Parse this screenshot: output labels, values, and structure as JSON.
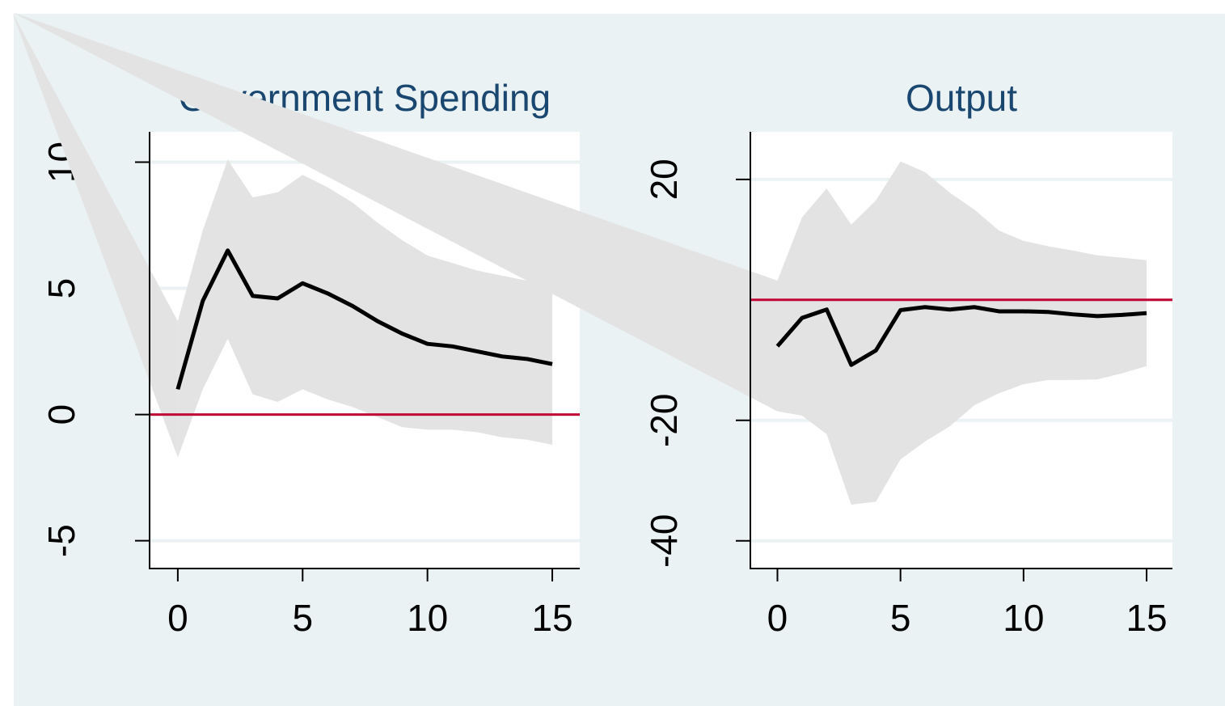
{
  "chart_data": [
    {
      "type": "line",
      "title": "Government Spending",
      "x": [
        0,
        1,
        2,
        3,
        4,
        5,
        6,
        7,
        8,
        9,
        10,
        11,
        12,
        13,
        14,
        15
      ],
      "series": [
        {
          "color": "#000000",
          "values": [
            1.0,
            4.5,
            6.5,
            4.7,
            4.6,
            5.2,
            4.8,
            4.3,
            3.7,
            3.2,
            2.8,
            2.7,
            2.5,
            2.3,
            2.2,
            2.0
          ]
        }
      ],
      "band": {
        "color": "#e3e3e3",
        "upper": [
          3.7,
          7.3,
          10.1,
          8.6,
          8.8,
          9.5,
          9.0,
          8.4,
          7.6,
          6.9,
          6.3,
          6.0,
          5.7,
          5.5,
          5.3,
          5.1
        ],
        "lower": [
          -1.7,
          1.0,
          3.0,
          0.8,
          0.5,
          1.0,
          0.6,
          0.3,
          -0.1,
          -0.5,
          -0.6,
          -0.6,
          -0.7,
          -0.9,
          -1.0,
          -1.2
        ]
      },
      "refline": {
        "value": 0,
        "color": "#c10534"
      },
      "xlim": [
        -1.13,
        16.1
      ],
      "xticks": [
        0,
        5,
        10,
        15
      ],
      "ylim": [
        -6.1,
        11.2
      ],
      "yticks": [
        -5,
        0,
        5,
        10
      ],
      "grid": true
    },
    {
      "type": "line",
      "title": "Output",
      "x": [
        0,
        1,
        2,
        3,
        4,
        5,
        6,
        7,
        8,
        9,
        10,
        11,
        12,
        13,
        14,
        15
      ],
      "series": [
        {
          "color": "#000000",
          "values": [
            -7.7,
            -3.0,
            -1.6,
            -10.8,
            -8.4,
            -1.7,
            -1.2,
            -1.6,
            -1.2,
            -1.9,
            -1.9,
            -2.0,
            -2.4,
            -2.7,
            -2.5,
            -2.2
          ]
        }
      ],
      "band": {
        "color": "#e3e3e3",
        "upper": [
          3.2,
          13.7,
          18.5,
          12.5,
          16.5,
          23.0,
          21.2,
          17.8,
          15.0,
          11.5,
          9.8,
          8.9,
          8.2,
          7.4,
          7.0,
          6.6
        ],
        "lower": [
          -18.5,
          -19.2,
          -22.3,
          -34.0,
          -33.5,
          -26.5,
          -23.5,
          -21.0,
          -17.5,
          -15.5,
          -14.0,
          -13.3,
          -13.3,
          -13.2,
          -12.2,
          -11.0
        ]
      },
      "refline": {
        "value": 0,
        "color": "#c10534"
      },
      "xlim": [
        -1.1,
        16.05
      ],
      "xticks": [
        0,
        5,
        10,
        15
      ],
      "ylim": [
        -44.6,
        27.9
      ],
      "yticks": [
        -40,
        -20,
        0,
        20
      ],
      "grid": true
    }
  ]
}
